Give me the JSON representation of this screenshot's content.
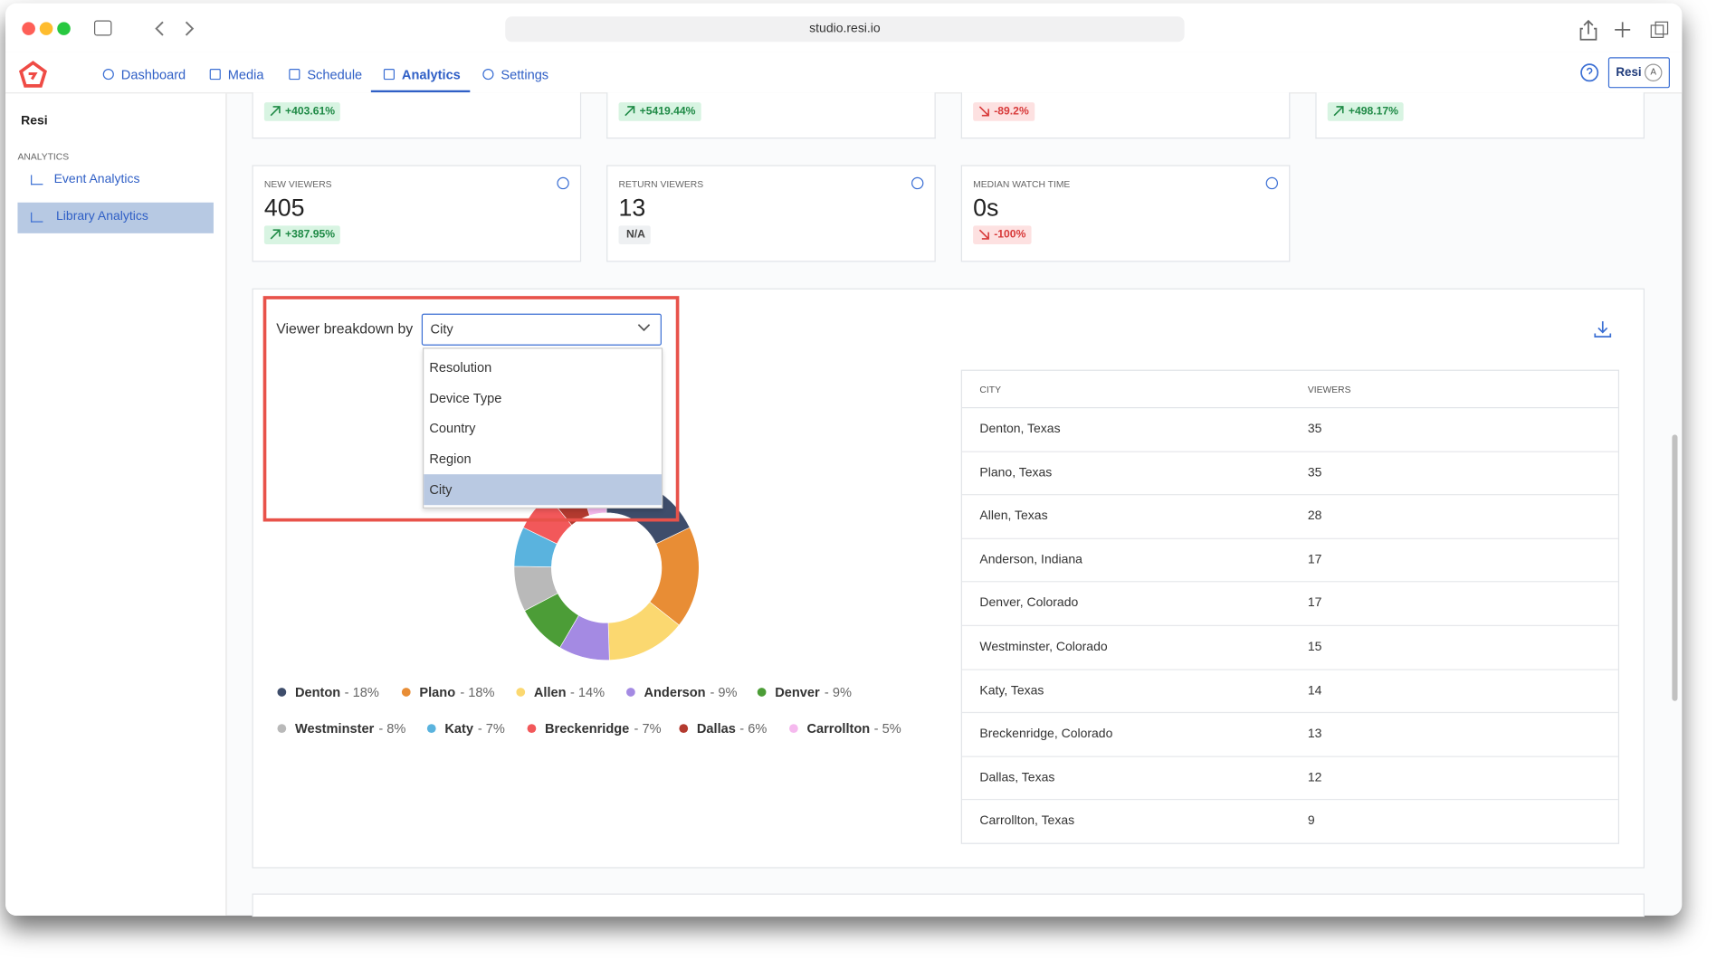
{
  "browser": {
    "url": "studio.resi.io"
  },
  "nav": {
    "items": [
      "Dashboard",
      "Media",
      "Schedule",
      "Analytics",
      "Settings"
    ],
    "active": 3,
    "user": "Resi",
    "avatar": "A"
  },
  "sidebar": {
    "title": "Resi",
    "section": "ANALYTICS",
    "links": [
      "Event Analytics",
      "Library Analytics"
    ],
    "active": 1
  },
  "stats_top": [
    {
      "change": "+403.61%",
      "trend": "up"
    },
    {
      "change": "+5419.44%",
      "trend": "up"
    },
    {
      "change": "-89.2%",
      "trend": "down"
    },
    {
      "change": "+498.17%",
      "trend": "up"
    }
  ],
  "stats": [
    {
      "label": "NEW VIEWERS",
      "value": 405,
      "change": "+387.95%",
      "trend": "up"
    },
    {
      "label": "RETURN VIEWERS",
      "value": 13,
      "change": "N/A",
      "trend": "none"
    },
    {
      "label": "MEDIAN WATCH TIME",
      "value": "0s",
      "change": "-100%",
      "trend": "down"
    }
  ],
  "breakdown": {
    "label": "Viewer breakdown by",
    "selected": "City",
    "options": [
      "Resolution",
      "Device Type",
      "Country",
      "Region",
      "City"
    ],
    "highlighted": 4
  },
  "chart_data": {
    "type": "donut",
    "categories": [
      "Denton",
      "Plano",
      "Allen",
      "Anderson",
      "Denver",
      "Westminster",
      "Katy",
      "Breckenridge",
      "Dallas",
      "Carrollton"
    ],
    "values": [
      18,
      18,
      14,
      9,
      9,
      8,
      7,
      7,
      6,
      5
    ],
    "value_labels": [
      "- 18%",
      "- 18%",
      "- 14%",
      "- 9%",
      "- 9%",
      "- 8%",
      "- 7%",
      "- 7%",
      "- 6%",
      "- 5%"
    ],
    "colors": [
      "#3e4d6b",
      "#e88d35",
      "#fbd870",
      "#a48ae3",
      "#4c9d37",
      "#b9b9b9",
      "#5ab3de",
      "#f2585a",
      "#b33a2f",
      "#f5b9ee"
    ]
  },
  "table": {
    "headers": [
      "CITY",
      "VIEWERS"
    ],
    "rows": [
      [
        "Denton, Texas",
        35
      ],
      [
        "Plano, Texas",
        35
      ],
      [
        "Allen, Texas",
        28
      ],
      [
        "Anderson, Indiana",
        17
      ],
      [
        "Denver, Colorado",
        17
      ],
      [
        "Westminster, Colorado",
        15
      ],
      [
        "Katy, Texas",
        14
      ],
      [
        "Breckenridge, Colorado",
        13
      ],
      [
        "Dallas, Texas",
        12
      ],
      [
        "Carrollton, Texas",
        9
      ]
    ]
  }
}
